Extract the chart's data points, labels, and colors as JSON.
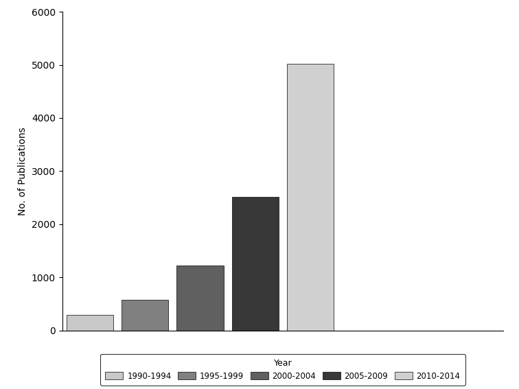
{
  "categories": [
    "1990-1994",
    "1995-1999",
    "2000-2004",
    "2005-2009",
    "2010-2014"
  ],
  "values": [
    300,
    580,
    1230,
    2520,
    5020
  ],
  "bar_colors": [
    "#c8c8c8",
    "#808080",
    "#606060",
    "#383838",
    "#d0d0d0"
  ],
  "ylabel": "No. of Publications",
  "ylim": [
    0,
    6000
  ],
  "yticks": [
    0,
    1000,
    2000,
    3000,
    4000,
    5000,
    6000
  ],
  "legend_title": "Year",
  "background_color": "#ffffff",
  "edge_color": "#000000",
  "fig_width": 7.56,
  "fig_height": 5.67,
  "dpi": 100
}
